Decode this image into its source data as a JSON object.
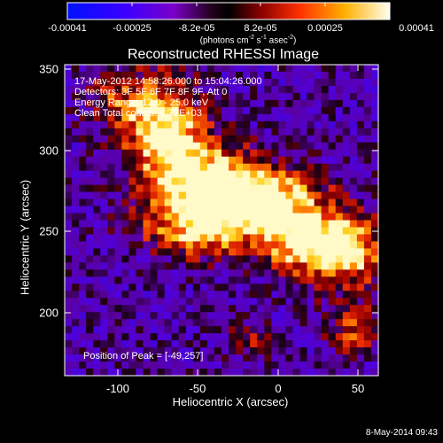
{
  "colorbar": {
    "tick_labels": [
      "-0.00041",
      "-0.00025",
      "-8.2e-05",
      "8.2e-05",
      "0.00025",
      "0.00041"
    ],
    "units_label": "(photons cm<sup>-2</sup> s<sup>-1</sup> asec<sup>-2</sup>)"
  },
  "title": "Reconstructed RHESSI Image",
  "info_lines": [
    "17-May-2012 14:58:26.000 to 15:04:26.000",
    "Detectors: 3F 5F 6F 7F 8F 9F, Att 0",
    "Energy Range: 12.0 - 25.0 keV",
    "Clean     Total counts: 4.72E+03"
  ],
  "peak_label": "Position of Peak = [-49,257]",
  "x_axis": {
    "label": "Heliocentric X (arcsec)",
    "ticks": [
      "-100",
      "-50",
      "0",
      "50"
    ],
    "range": [
      -133,
      62
    ]
  },
  "y_axis": {
    "label": "Heliocentric Y (arcsec)",
    "ticks": [
      "200",
      "250",
      "300",
      "350"
    ],
    "range": [
      155,
      353
    ]
  },
  "timestamp": "8-May-2014 09:43",
  "colors": {
    "background": "#000000",
    "text": "#ffffff"
  }
}
